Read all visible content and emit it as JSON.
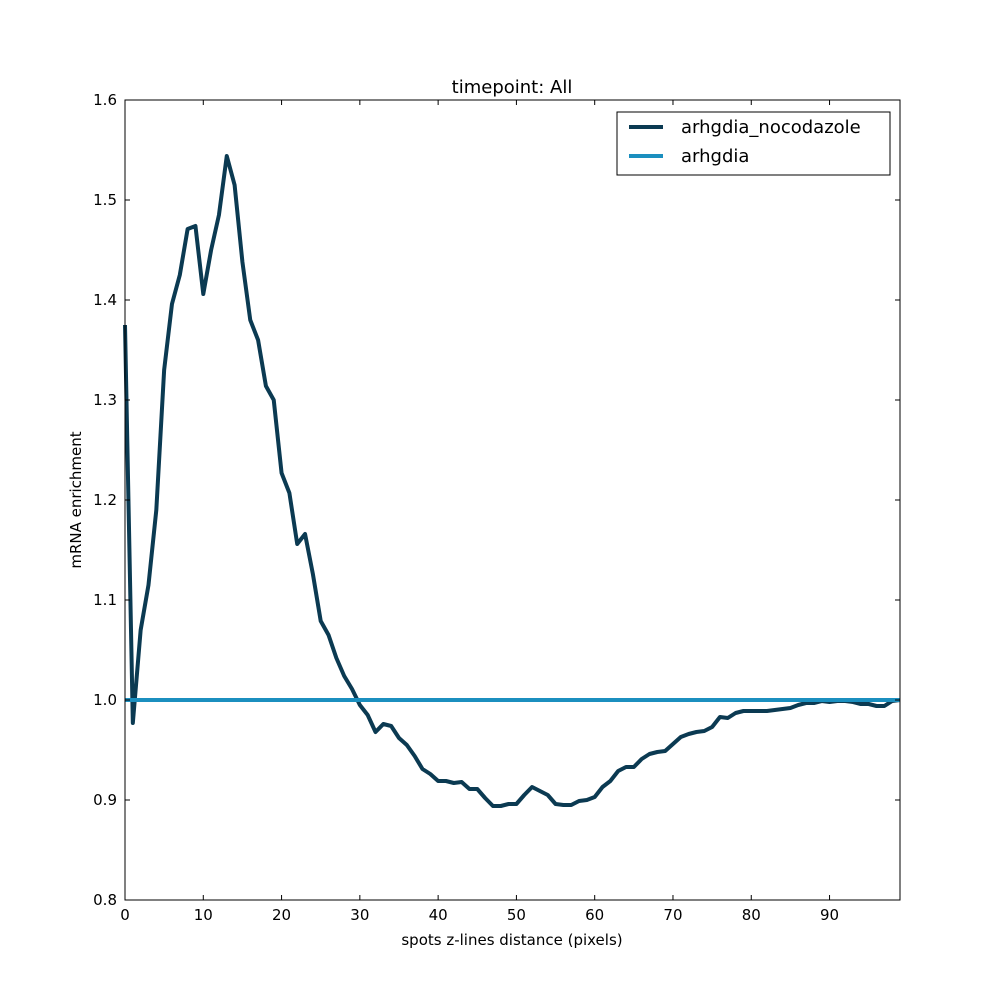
{
  "chart_data": {
    "type": "line",
    "title": "timepoint: All",
    "xlabel": "spots z-lines distance (pixels)",
    "ylabel": "mRNA enrichment",
    "xlim": [
      0,
      99
    ],
    "ylim": [
      0.8,
      1.6
    ],
    "xticks": [
      0,
      10,
      20,
      30,
      40,
      50,
      60,
      70,
      80,
      90
    ],
    "yticks": [
      0.8,
      0.9,
      1.0,
      1.1,
      1.2,
      1.3,
      1.4,
      1.5,
      1.6
    ],
    "x_tick_labels": [
      "0",
      "10",
      "20",
      "30",
      "40",
      "50",
      "60",
      "70",
      "80",
      "90"
    ],
    "y_tick_labels": [
      "0.8",
      "0.9",
      "1.0",
      "1.1",
      "1.2",
      "1.3",
      "1.4",
      "1.5",
      "1.6"
    ],
    "grid": false,
    "legend_position": "top-right",
    "series": [
      {
        "name": "arhgdia_nocodazole",
        "color": "#0b3a52",
        "x": [
          0,
          1,
          2,
          3,
          4,
          5,
          6,
          7,
          8,
          9,
          10,
          11,
          12,
          13,
          14,
          15,
          16,
          17,
          18,
          19,
          20,
          21,
          22,
          23,
          24,
          25,
          26,
          27,
          28,
          29,
          30,
          31,
          32,
          33,
          34,
          35,
          36,
          37,
          38,
          39,
          40,
          41,
          42,
          43,
          44,
          45,
          46,
          47,
          48,
          49,
          50,
          51,
          52,
          53,
          54,
          55,
          56,
          57,
          58,
          59,
          60,
          61,
          62,
          63,
          64,
          65,
          66,
          67,
          68,
          69,
          70,
          71,
          72,
          73,
          74,
          75,
          76,
          77,
          78,
          79,
          80,
          81,
          82,
          83,
          84,
          85,
          86,
          87,
          88,
          89,
          90,
          91,
          92,
          93,
          94,
          95,
          96,
          97,
          98,
          99
        ],
        "y": [
          1.375,
          0.977,
          1.07,
          1.115,
          1.19,
          1.33,
          1.396,
          1.425,
          1.471,
          1.474,
          1.406,
          1.45,
          1.485,
          1.544,
          1.515,
          1.438,
          1.38,
          1.36,
          1.314,
          1.3,
          1.227,
          1.207,
          1.156,
          1.166,
          1.126,
          1.079,
          1.065,
          1.042,
          1.024,
          1.011,
          0.995,
          0.985,
          0.968,
          0.976,
          0.974,
          0.962,
          0.955,
          0.944,
          0.931,
          0.926,
          0.919,
          0.919,
          0.917,
          0.918,
          0.911,
          0.911,
          0.902,
          0.894,
          0.894,
          0.896,
          0.896,
          0.905,
          0.913,
          0.909,
          0.905,
          0.896,
          0.895,
          0.895,
          0.899,
          0.9,
          0.903,
          0.913,
          0.919,
          0.929,
          0.933,
          0.933,
          0.941,
          0.946,
          0.948,
          0.949,
          0.956,
          0.963,
          0.966,
          0.968,
          0.969,
          0.973,
          0.983,
          0.982,
          0.987,
          0.989,
          0.989,
          0.989,
          0.989,
          0.99,
          0.991,
          0.992,
          0.995,
          0.997,
          0.997,
          0.999,
          0.998,
          0.999,
          0.999,
          0.998,
          0.996,
          0.996,
          0.994,
          0.994,
          0.999,
          1.0
        ]
      },
      {
        "name": "arhgdia",
        "color": "#1b8fbf",
        "x": [
          0,
          99
        ],
        "y": [
          1.0,
          1.0
        ]
      }
    ]
  }
}
